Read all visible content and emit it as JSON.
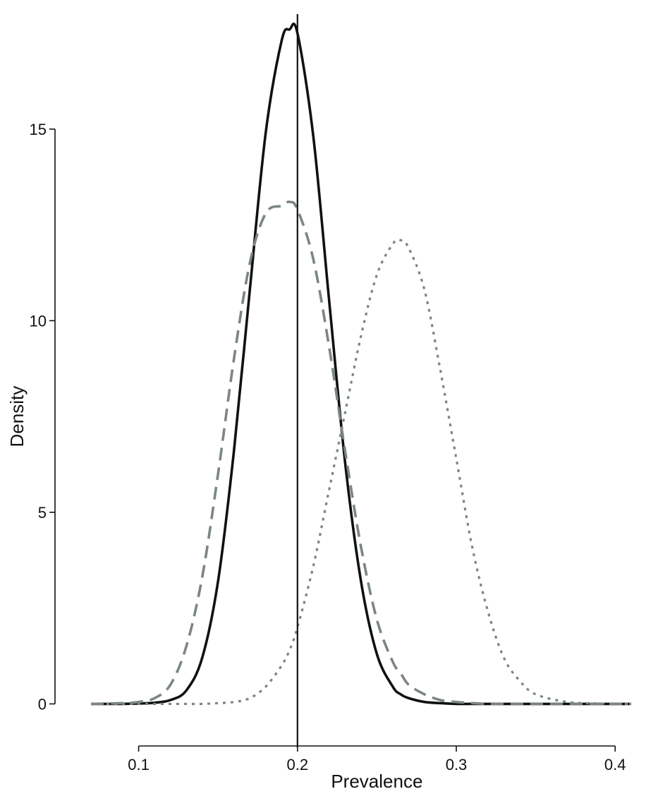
{
  "chart_data": {
    "type": "line",
    "xlabel": "Prevalence",
    "ylabel": "Density",
    "xlim": [
      0.066,
      0.415
    ],
    "ylim": [
      -0.6,
      18.0
    ],
    "xticks": [
      0.1,
      0.2,
      0.3,
      0.4
    ],
    "xtick_labels": [
      "0.1",
      "0.2",
      "0.3",
      "0.4"
    ],
    "yticks": [
      0,
      5,
      10,
      15
    ],
    "ytick_labels": [
      "0",
      "5",
      "10",
      "15"
    ],
    "grid": false,
    "legend": "none",
    "reference_line": {
      "x": 0.2,
      "color": "#111111",
      "style": "solid"
    },
    "x": [
      0.07,
      0.09,
      0.1,
      0.11,
      0.12,
      0.13,
      0.14,
      0.15,
      0.16,
      0.17,
      0.18,
      0.19,
      0.195,
      0.2,
      0.21,
      0.22,
      0.23,
      0.24,
      0.25,
      0.26,
      0.265,
      0.27,
      0.28,
      0.29,
      0.3,
      0.31,
      0.32,
      0.33,
      0.34,
      0.35,
      0.37,
      0.39,
      0.41
    ],
    "series": [
      {
        "color": "#111111",
        "style": "solid",
        "values": [
          0.0,
          0.0,
          0.01,
          0.03,
          0.1,
          0.35,
          1.2,
          3.2,
          6.6,
          10.8,
          14.9,
          17.3,
          17.6,
          17.5,
          14.8,
          10.5,
          6.3,
          3.2,
          1.3,
          0.45,
          0.25,
          0.15,
          0.05,
          0.02,
          0.0,
          0.0,
          0.0,
          0.0,
          0.0,
          0.0,
          0.0,
          0.0,
          0.0
        ]
      },
      {
        "color": "#7c8585",
        "style": "dashed",
        "values": [
          0.0,
          0.02,
          0.05,
          0.15,
          0.5,
          1.5,
          3.3,
          6.0,
          9.0,
          11.5,
          12.8,
          13.0,
          13.1,
          12.9,
          11.6,
          9.3,
          6.6,
          4.1,
          2.2,
          1.1,
          0.8,
          0.5,
          0.25,
          0.1,
          0.05,
          0.02,
          0.0,
          0.0,
          0.0,
          0.0,
          0.0,
          0.0,
          0.0
        ]
      },
      {
        "color": "#7c8585",
        "style": "dotted",
        "values": [
          0.0,
          0.0,
          0.0,
          0.0,
          0.0,
          0.0,
          0.0,
          0.02,
          0.05,
          0.15,
          0.45,
          1.0,
          1.4,
          2.0,
          3.6,
          5.6,
          7.6,
          9.6,
          11.2,
          12.0,
          12.1,
          11.9,
          10.8,
          8.7,
          6.4,
          4.1,
          2.4,
          1.2,
          0.6,
          0.25,
          0.05,
          0.01,
          0.0
        ]
      }
    ]
  }
}
